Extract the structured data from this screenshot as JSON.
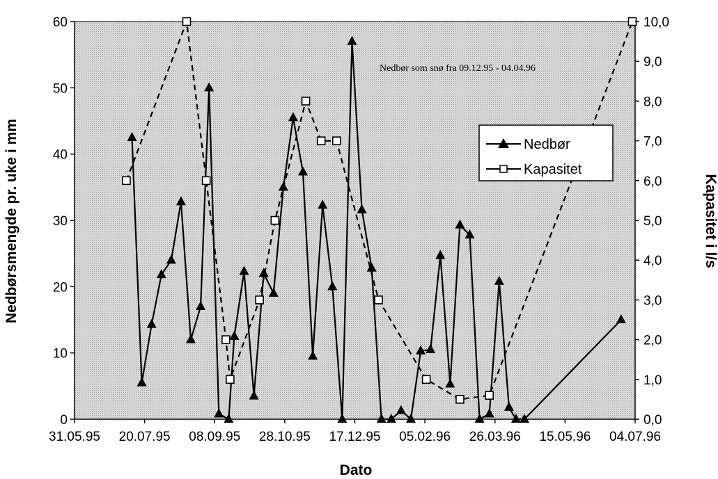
{
  "chart_data": {
    "type": "line",
    "xlabel": "Dato",
    "ylabel": "Nedbørsmengde pr. uke i mm",
    "y2label": "Kapasitet i l/s",
    "annotation": "Nedbør som snø fra 09.12.95 - 04.04.96",
    "xlim": [
      "31.05.95",
      "04.07.96"
    ],
    "x_ticks": [
      "31.05.95",
      "20.07.95",
      "08.09.95",
      "28.10.95",
      "17.12.95",
      "05.02.96",
      "26.03.96",
      "15.05.96",
      "04.07.96"
    ],
    "ylim": [
      0,
      60
    ],
    "y_ticks": [
      "0",
      "10",
      "20",
      "30",
      "40",
      "50",
      "60"
    ],
    "y2lim": [
      0,
      10
    ],
    "y2_ticks": [
      "0,0",
      "1,0",
      "2,0",
      "3,0",
      "4,0",
      "5,0",
      "6,0",
      "7,0",
      "8,0",
      "9,0",
      "10,0"
    ],
    "background": "#d4d4d4",
    "legend_position": "right",
    "series": [
      {
        "name": "Nedbør",
        "axis": "left",
        "marker": "triangle",
        "line": "solid",
        "color": "#000000",
        "points": [
          [
            "11.07.95",
            42.5
          ],
          [
            "18.07.95",
            5.5
          ],
          [
            "25.07.95",
            14.3
          ],
          [
            "01.08.95",
            21.8
          ],
          [
            "08.08.95",
            24.0
          ],
          [
            "15.08.95",
            32.8
          ],
          [
            "22.08.95",
            12.0
          ],
          [
            "29.08.95",
            17.0
          ],
          [
            "04.09.95",
            50.0
          ],
          [
            "11.09.95",
            0.8
          ],
          [
            "18.09.95",
            0.0
          ],
          [
            "22.09.95",
            12.5
          ],
          [
            "29.09.95",
            22.3
          ],
          [
            "06.10.95",
            3.5
          ],
          [
            "13.10.95",
            22.0
          ],
          [
            "20.10.95",
            19.0
          ],
          [
            "27.10.95",
            35.0
          ],
          [
            "03.11.95",
            45.5
          ],
          [
            "10.11.95",
            37.3
          ],
          [
            "17.11.95",
            9.5
          ],
          [
            "24.11.95",
            32.3
          ],
          [
            "01.12.95",
            20.0
          ],
          [
            "08.12.95",
            0.0
          ],
          [
            "15.12.95",
            57.0
          ],
          [
            "22.12.95",
            31.6
          ],
          [
            "29.12.95",
            22.8
          ],
          [
            "05.01.96",
            0.0
          ],
          [
            "12.01.96",
            0.0
          ],
          [
            "19.01.96",
            1.3
          ],
          [
            "26.01.96",
            0.0
          ],
          [
            "02.02.96",
            10.3
          ],
          [
            "09.02.96",
            10.5
          ],
          [
            "16.02.96",
            24.7
          ],
          [
            "23.02.96",
            5.3
          ],
          [
            "01.03.96",
            29.3
          ],
          [
            "08.03.96",
            27.8
          ],
          [
            "15.03.96",
            0.0
          ],
          [
            "22.03.96",
            0.8
          ],
          [
            "29.03.96",
            20.8
          ],
          [
            "05.04.96",
            1.8
          ],
          [
            "10.04.96",
            0.0
          ],
          [
            "16.04.96",
            0.0
          ],
          [
            "24.06.96",
            15.0
          ]
        ]
      },
      {
        "name": "Kapasitet",
        "axis": "right",
        "marker": "square",
        "line": "dashed",
        "color": "#000000",
        "points": [
          [
            "07.07.95",
            6.0
          ],
          [
            "19.08.95",
            10.0
          ],
          [
            "02.09.95",
            6.0
          ],
          [
            "16.09.95",
            2.0
          ],
          [
            "19.09.95",
            1.0
          ],
          [
            "10.10.95",
            3.0
          ],
          [
            "21.10.95",
            5.0
          ],
          [
            "12.11.95",
            8.0
          ],
          [
            "23.11.95",
            7.0
          ],
          [
            "04.12.95",
            7.0
          ],
          [
            "03.01.96",
            3.0
          ],
          [
            "06.02.96",
            1.0
          ],
          [
            "01.03.96",
            0.5
          ],
          [
            "22.03.96",
            0.6
          ],
          [
            "02.07.96",
            10.0
          ]
        ]
      }
    ]
  }
}
